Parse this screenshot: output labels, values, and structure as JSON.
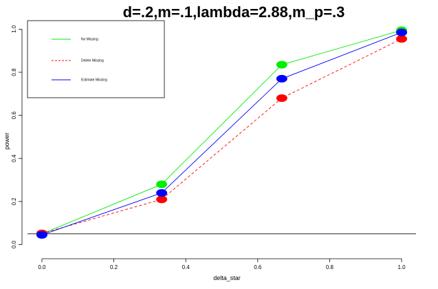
{
  "chart_data": {
    "type": "line",
    "title": "d=.2,m=.1,lambda=2.88,m_p=.3",
    "xlabel": "delta_star",
    "ylabel": "power",
    "x": [
      0,
      0.333,
      0.667,
      1
    ],
    "xlim": [
      -0.04,
      1.04
    ],
    "ylim": [
      -0.04,
      1.03
    ],
    "xticks": [
      {
        "value": 0.0,
        "label": "0.0"
      },
      {
        "value": 0.2,
        "label": "0.2"
      },
      {
        "value": 0.4,
        "label": "0.4"
      },
      {
        "value": 0.6,
        "label": "0.6"
      },
      {
        "value": 0.8,
        "label": "0.8"
      },
      {
        "value": 1.0,
        "label": "1.0"
      }
    ],
    "yticks": [
      {
        "value": 0.0,
        "label": "0.0"
      },
      {
        "value": 0.2,
        "label": "0.2"
      },
      {
        "value": 0.4,
        "label": "0.4"
      },
      {
        "value": 0.6,
        "label": "0.6"
      },
      {
        "value": 0.8,
        "label": "0.8"
      },
      {
        "value": 1.0,
        "label": "1.0"
      }
    ],
    "hline": 0.05,
    "legend_position": "top-left",
    "series": [
      {
        "name": "No Missing",
        "color": "#00ee00",
        "dash": "solid",
        "values": [
          0.05,
          0.28,
          0.835,
          0.995
        ]
      },
      {
        "name": "Delete Missing",
        "color": "#ff0000",
        "dash": "dashed",
        "values": [
          0.052,
          0.21,
          0.68,
          0.955
        ]
      },
      {
        "name": "Estimate Missing",
        "color": "#0000ff",
        "dash": "solid",
        "values": [
          0.045,
          0.24,
          0.77,
          0.985
        ]
      }
    ],
    "draw_order": [
      0,
      1,
      2
    ]
  }
}
